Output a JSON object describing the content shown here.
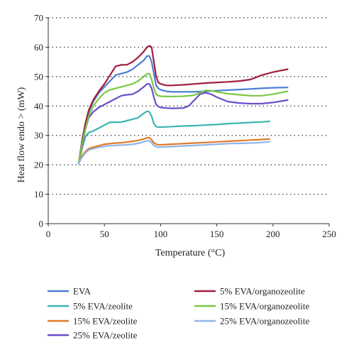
{
  "chart_data": {
    "type": "line",
    "title": "",
    "xlabel": "Temperature (°C)",
    "ylabel": "Heat flow endo > (mW)",
    "xlim": [
      0,
      250
    ],
    "ylim": [
      0,
      70
    ],
    "xticks": [
      0,
      50,
      100,
      150,
      200,
      250
    ],
    "yticks": [
      0,
      10,
      20,
      30,
      40,
      50,
      60,
      70
    ],
    "grid": "horizontal dotted",
    "legend_position": "bottom",
    "series": [
      {
        "name": "EVA",
        "color": "#4a7fd4",
        "x": [
          27,
          30,
          33,
          36,
          40,
          45,
          50,
          55,
          60,
          65,
          70,
          75,
          80,
          85,
          88,
          90,
          92,
          94,
          96,
          98,
          100,
          105,
          110,
          120,
          130,
          140,
          150,
          160,
          170,
          180,
          190,
          200,
          213
        ],
        "y": [
          20.5,
          27,
          33,
          38,
          41.5,
          44.5,
          46.5,
          48.5,
          50.5,
          51,
          51.5,
          52.5,
          54,
          55.5,
          57,
          57,
          55,
          51,
          47,
          46,
          45.5,
          45,
          44.8,
          44.8,
          44.8,
          45,
          45.2,
          45.4,
          45.6,
          45.8,
          46,
          46.2,
          46.3
        ]
      },
      {
        "name": "5% EVA/zeolite",
        "color": "#3db5b0",
        "x": [
          27,
          30,
          33,
          36,
          40,
          45,
          50,
          55,
          60,
          65,
          70,
          75,
          80,
          85,
          88,
          90,
          92,
          94,
          96,
          98,
          100,
          110,
          120,
          130,
          140,
          150,
          160,
          170,
          180,
          190,
          197
        ],
        "y": [
          20.5,
          25.5,
          29.5,
          31,
          31.5,
          32.5,
          33.5,
          34.5,
          34.5,
          34.5,
          35,
          35.5,
          36,
          37.5,
          38.2,
          38,
          36.5,
          34,
          33,
          32.8,
          32.8,
          33,
          33.2,
          33.3,
          33.5,
          33.7,
          34,
          34.2,
          34.4,
          34.6,
          34.8
        ]
      },
      {
        "name": "15% EVA/zeolite",
        "color": "#e07a2a",
        "x": [
          27,
          30,
          33,
          36,
          40,
          45,
          50,
          55,
          60,
          65,
          70,
          75,
          80,
          85,
          88,
          90,
          92,
          94,
          96,
          98,
          100,
          110,
          120,
          130,
          140,
          150,
          160,
          170,
          180,
          190,
          197
        ],
        "y": [
          20.5,
          23,
          24.5,
          25.5,
          26,
          26.5,
          27,
          27.2,
          27.4,
          27.5,
          27.7,
          28,
          28.3,
          28.8,
          29.2,
          29.2,
          28.5,
          27.5,
          27,
          26.8,
          26.8,
          27,
          27.2,
          27.4,
          27.6,
          27.8,
          28,
          28.2,
          28.4,
          28.6,
          28.8
        ]
      },
      {
        "name": "25% EVA/zeolite",
        "color": "#6a4ec8",
        "x": [
          27,
          30,
          33,
          36,
          40,
          45,
          50,
          55,
          60,
          65,
          70,
          75,
          80,
          85,
          88,
          90,
          92,
          94,
          96,
          98,
          100,
          105,
          110,
          120,
          125,
          130,
          135,
          140,
          145,
          150,
          160,
          170,
          180,
          190,
          200,
          213
        ],
        "y": [
          20.5,
          26,
          32,
          36,
          38,
          39.5,
          40.5,
          41.5,
          42.5,
          43.5,
          43.8,
          44,
          45,
          46.5,
          47.5,
          47.5,
          46,
          43,
          40.5,
          39.8,
          39.5,
          39.3,
          39.2,
          39.3,
          40,
          42,
          44,
          44.5,
          44,
          43,
          41.5,
          41,
          40.8,
          40.8,
          41.2,
          42
        ]
      },
      {
        "name": "5% EVA/organozeolite",
        "color": "#a11d3d",
        "x": [
          27,
          30,
          33,
          36,
          40,
          45,
          50,
          55,
          60,
          65,
          70,
          75,
          80,
          85,
          88,
          90,
          92,
          94,
          96,
          98,
          100,
          105,
          110,
          120,
          130,
          140,
          150,
          160,
          170,
          180,
          190,
          200,
          213
        ],
        "y": [
          20.5,
          28,
          34,
          38.5,
          42,
          45,
          47.5,
          50.5,
          53.5,
          54,
          54,
          55,
          56.5,
          58.5,
          60,
          60.5,
          60,
          55,
          50,
          48,
          47.5,
          47,
          47,
          47.2,
          47.5,
          47.8,
          48,
          48.2,
          48.5,
          49,
          50.5,
          51.5,
          52.5
        ]
      },
      {
        "name": "15% EVA/organozeolite",
        "color": "#7ac943",
        "x": [
          27,
          30,
          33,
          36,
          40,
          45,
          50,
          55,
          60,
          65,
          70,
          75,
          80,
          85,
          88,
          90,
          92,
          94,
          96,
          98,
          100,
          110,
          120,
          130,
          135,
          140,
          145,
          150,
          160,
          170,
          180,
          190,
          200,
          213
        ],
        "y": [
          20.5,
          27,
          32,
          36.5,
          40,
          42.5,
          44.5,
          45.5,
          46,
          46.5,
          47,
          47.5,
          48.5,
          50,
          51,
          51,
          49,
          46,
          44,
          43.5,
          43.3,
          43.2,
          43.3,
          43.7,
          44.5,
          45.3,
          45.2,
          44.8,
          44.2,
          43.8,
          43.5,
          43.5,
          44,
          45
        ]
      },
      {
        "name": "25% EVA/organozeolite",
        "color": "#8fb5e8",
        "x": [
          27,
          30,
          33,
          36,
          40,
          45,
          50,
          55,
          60,
          65,
          70,
          75,
          80,
          85,
          88,
          90,
          92,
          94,
          96,
          98,
          100,
          110,
          120,
          130,
          140,
          150,
          160,
          170,
          180,
          190,
          197
        ],
        "y": [
          20.5,
          22.5,
          24,
          25,
          25.5,
          26,
          26.3,
          26.5,
          26.6,
          26.7,
          26.8,
          27,
          27.3,
          27.8,
          28.2,
          28.2,
          27.5,
          26.5,
          26.2,
          26,
          26,
          26.2,
          26.4,
          26.6,
          26.8,
          27,
          27.2,
          27.3,
          27.4,
          27.6,
          27.8
        ]
      }
    ]
  }
}
